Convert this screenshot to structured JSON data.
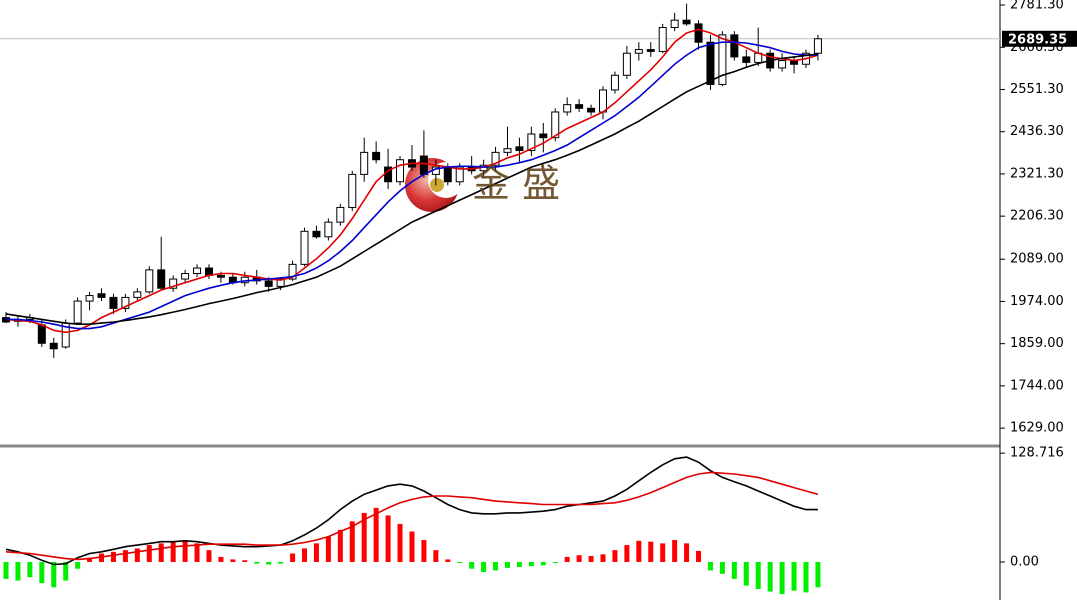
{
  "chart_data": [
    {
      "type": "candlestick",
      "open": [
        1930,
        1920,
        1925,
        1910,
        1860,
        1850,
        1915,
        1975,
        1995,
        1985,
        1955,
        1985,
        2000,
        2060,
        2010,
        2035,
        2050,
        2065,
        2045,
        2040,
        2025,
        2040,
        2030,
        2015,
        2035,
        2075,
        2165,
        2150,
        2190,
        2230,
        2320,
        2380,
        2340,
        2300,
        2360,
        2370,
        2320,
        2340,
        2300,
        2340,
        2330,
        2345,
        2380,
        2395,
        2385,
        2430,
        2420,
        2490,
        2510,
        2500,
        2490,
        2550,
        2590,
        2650,
        2660,
        2655,
        2720,
        2740,
        2730,
        2680,
        2565,
        2700,
        2640,
        2625,
        2650,
        2610,
        2630,
        2620,
        2650
      ],
      "high": [
        1945,
        1935,
        1940,
        1925,
        1875,
        1925,
        1985,
        2000,
        2010,
        1995,
        1995,
        2010,
        2070,
        2150,
        2045,
        2060,
        2075,
        2075,
        2055,
        2050,
        2055,
        2060,
        2040,
        2040,
        2085,
        2175,
        2180,
        2200,
        2240,
        2330,
        2420,
        2410,
        2390,
        2370,
        2400,
        2440,
        2360,
        2350,
        2350,
        2370,
        2360,
        2395,
        2450,
        2420,
        2450,
        2460,
        2500,
        2530,
        2525,
        2510,
        2560,
        2600,
        2670,
        2680,
        2680,
        2730,
        2760,
        2785,
        2740,
        2700,
        2710,
        2710,
        2660,
        2720,
        2660,
        2650,
        2640,
        2660,
        2700
      ],
      "low": [
        1915,
        1905,
        1915,
        1850,
        1820,
        1845,
        1910,
        1950,
        1975,
        1940,
        1945,
        1975,
        1995,
        2005,
        2000,
        2025,
        2040,
        2035,
        2025,
        2020,
        2015,
        2020,
        2000,
        2005,
        2030,
        2070,
        2145,
        2140,
        2180,
        2220,
        2300,
        2350,
        2280,
        2290,
        2330,
        2310,
        2290,
        2290,
        2290,
        2320,
        2310,
        2330,
        2370,
        2350,
        2370,
        2380,
        2410,
        2480,
        2490,
        2480,
        2470,
        2540,
        2580,
        2630,
        2640,
        2650,
        2710,
        2725,
        2660,
        2550,
        2560,
        2630,
        2610,
        2615,
        2600,
        2600,
        2595,
        2610,
        2630
      ],
      "close": [
        1918,
        1925,
        1930,
        1860,
        1845,
        1915,
        1975,
        1990,
        1985,
        1955,
        1985,
        2000,
        2060,
        2010,
        2035,
        2050,
        2065,
        2045,
        2040,
        2025,
        2040,
        2030,
        2015,
        2035,
        2075,
        2165,
        2150,
        2190,
        2230,
        2320,
        2380,
        2360,
        2300,
        2360,
        2340,
        2320,
        2340,
        2300,
        2340,
        2330,
        2345,
        2380,
        2390,
        2385,
        2430,
        2420,
        2490,
        2510,
        2500,
        2490,
        2550,
        2590,
        2650,
        2660,
        2655,
        2720,
        2740,
        2730,
        2680,
        2565,
        2700,
        2640,
        2625,
        2650,
        2610,
        2630,
        2620,
        2650,
        2689.35
      ],
      "lines": [
        {
          "color": "#e00000",
          "values": [
            1925,
            1922,
            1920,
            1910,
            1895,
            1890,
            1895,
            1910,
            1930,
            1945,
            1960,
            1975,
            1990,
            2005,
            2015,
            2025,
            2035,
            2045,
            2050,
            2050,
            2045,
            2040,
            2035,
            2032,
            2040,
            2065,
            2090,
            2120,
            2155,
            2200,
            2250,
            2300,
            2330,
            2345,
            2350,
            2350,
            2345,
            2340,
            2335,
            2335,
            2340,
            2350,
            2365,
            2375,
            2390,
            2405,
            2425,
            2445,
            2460,
            2475,
            2490,
            2515,
            2545,
            2575,
            2605,
            2640,
            2680,
            2705,
            2715,
            2705,
            2690,
            2680,
            2665,
            2650,
            2640,
            2635,
            2630,
            2635,
            2645
          ]
        },
        {
          "color": "#0000d0",
          "values": [
            1925,
            1925,
            1922,
            1918,
            1912,
            1905,
            1900,
            1900,
            1905,
            1915,
            1925,
            1935,
            1945,
            1960,
            1975,
            1990,
            2000,
            2010,
            2018,
            2025,
            2030,
            2032,
            2035,
            2038,
            2042,
            2050,
            2065,
            2085,
            2110,
            2140,
            2175,
            2210,
            2245,
            2275,
            2300,
            2320,
            2335,
            2340,
            2342,
            2342,
            2340,
            2340,
            2345,
            2352,
            2360,
            2372,
            2385,
            2400,
            2420,
            2440,
            2460,
            2480,
            2505,
            2530,
            2560,
            2590,
            2620,
            2645,
            2665,
            2675,
            2680,
            2680,
            2678,
            2672,
            2665,
            2655,
            2648,
            2645,
            2645
          ]
        },
        {
          "color": "#000000",
          "values": [
            1940,
            1935,
            1930,
            1925,
            1920,
            1915,
            1912,
            1912,
            1915,
            1918,
            1922,
            1927,
            1932,
            1938,
            1945,
            1952,
            1960,
            1968,
            1975,
            1982,
            1990,
            1998,
            2005,
            2012,
            2020,
            2030,
            2040,
            2055,
            2070,
            2090,
            2110,
            2130,
            2150,
            2170,
            2190,
            2205,
            2220,
            2235,
            2250,
            2265,
            2280,
            2295,
            2310,
            2325,
            2340,
            2350,
            2360,
            2372,
            2385,
            2400,
            2415,
            2430,
            2448,
            2465,
            2485,
            2505,
            2525,
            2545,
            2560,
            2575,
            2590,
            2600,
            2612,
            2622,
            2630,
            2636,
            2640,
            2644,
            2648
          ]
        }
      ],
      "ylim": [
        1583,
        2795
      ],
      "yticks": [
        {
          "value": 2781.3,
          "label": "2781.30"
        },
        {
          "value": 2666.3,
          "label": "2666.30"
        },
        {
          "value": 2551.3,
          "label": "2551.30"
        },
        {
          "value": 2436.3,
          "label": "2436.30"
        },
        {
          "value": 2321.3,
          "label": "2321.30"
        },
        {
          "value": 2206.3,
          "label": "2206.30"
        },
        {
          "value": 2089,
          "label": "2089.00"
        },
        {
          "value": 1974,
          "label": "1974.00"
        },
        {
          "value": 1859,
          "label": "1859.00"
        },
        {
          "value": 1744,
          "label": "1744.00"
        },
        {
          "value": 1629,
          "label": "1629.00"
        }
      ],
      "watermark": "金 盛"
    },
    {
      "type": "macd",
      "histogram": [
        -20,
        -22,
        -18,
        -25,
        -30,
        -22,
        -8,
        5,
        10,
        12,
        14,
        16,
        20,
        22,
        24,
        26,
        22,
        14,
        6,
        3,
        2,
        -2,
        -3,
        -2,
        10,
        16,
        22,
        30,
        38,
        48,
        58,
        64,
        55,
        45,
        36,
        26,
        14,
        3,
        -1,
        -8,
        -12,
        -10,
        -7,
        -6,
        -5,
        -4,
        -1,
        6,
        8,
        7,
        9,
        14,
        20,
        25,
        24,
        22,
        26,
        22,
        13,
        -10,
        -14,
        -20,
        -28,
        -32,
        -35,
        -38,
        -34,
        -36,
        -30
      ],
      "up_color": "#ff0000",
      "down_color": "#00ee00",
      "lines": [
        {
          "color": "#000000",
          "values": [
            15,
            12,
            8,
            2,
            -3,
            -2,
            5,
            10,
            12,
            15,
            18,
            20,
            22,
            24,
            24,
            25,
            24,
            22,
            20,
            19,
            18,
            18,
            19,
            20,
            25,
            32,
            40,
            50,
            62,
            72,
            80,
            85,
            90,
            92,
            90,
            84,
            76,
            68,
            62,
            58,
            57,
            57,
            58,
            58,
            59,
            60,
            62,
            66,
            68,
            70,
            72,
            78,
            86,
            96,
            106,
            115,
            122,
            124,
            118,
            108,
            100,
            95,
            90,
            84,
            78,
            72,
            66,
            62,
            62
          ]
        },
        {
          "color": "#e00000",
          "values": [
            12,
            11,
            10,
            8,
            6,
            4,
            3,
            4,
            6,
            8,
            10,
            12,
            14,
            16,
            18,
            19,
            20,
            21,
            21,
            21,
            21,
            20,
            20,
            20,
            21,
            23,
            26,
            30,
            36,
            42,
            50,
            57,
            64,
            70,
            74,
            77,
            78,
            78,
            77,
            76,
            74,
            72,
            71,
            70,
            69,
            68,
            68,
            68,
            68,
            68,
            69,
            70,
            73,
            77,
            82,
            88,
            94,
            100,
            104,
            106,
            105,
            104,
            102,
            100,
            96,
            92,
            88,
            84,
            80
          ]
        }
      ],
      "ylim": [
        -45,
        136
      ],
      "yticks": [
        128.716,
        {
          "value": 0,
          "label": "0.00"
        }
      ]
    }
  ]
}
